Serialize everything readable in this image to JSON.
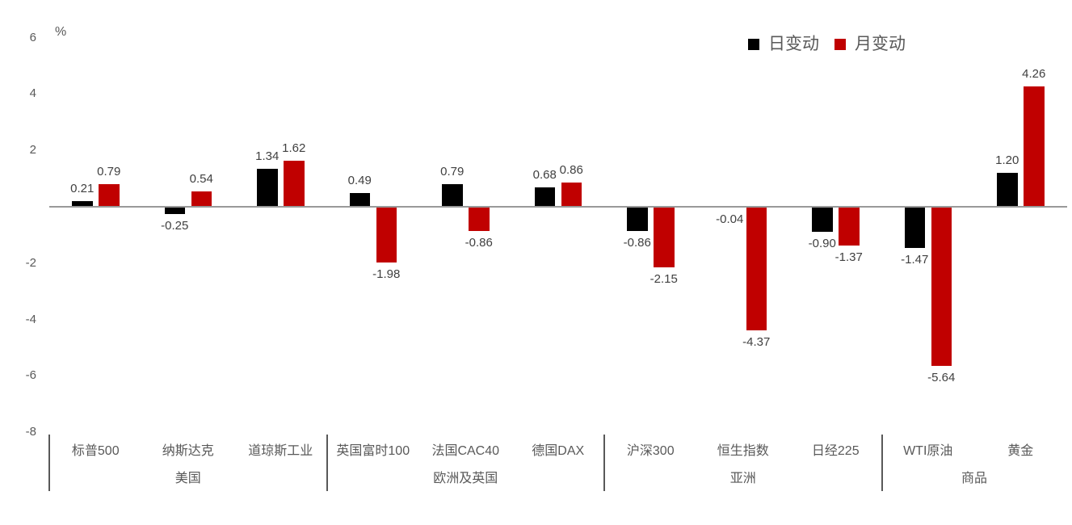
{
  "chart_data": {
    "type": "bar",
    "title": "",
    "axis_unit_label": "%",
    "categories": [
      "标普500",
      "纳斯达克",
      "道琼斯工业",
      "英国富时100",
      "法国CAC40",
      "德国DAX",
      "沪深300",
      "恒生指数",
      "日经225",
      "WTI原油",
      "黄金"
    ],
    "series": [
      {
        "name": "日变动",
        "key": "day-change",
        "color": "#000000",
        "values": [
          0.21,
          -0.25,
          1.34,
          0.49,
          0.79,
          0.68,
          -0.86,
          -0.04,
          -0.9,
          -1.47,
          1.2
        ]
      },
      {
        "name": "月变动",
        "key": "month-change",
        "color": "#C00000",
        "values": [
          0.79,
          0.54,
          1.62,
          -1.98,
          -0.86,
          0.86,
          -2.15,
          -4.37,
          -1.37,
          -5.64,
          4.26
        ]
      }
    ],
    "groups": [
      {
        "label": "美国",
        "span": 3
      },
      {
        "label": "欧洲及英国",
        "span": 3
      },
      {
        "label": "亚洲",
        "span": 3
      },
      {
        "label": "商品",
        "span": 2
      }
    ],
    "y_ticks": [
      6,
      4,
      2,
      -2,
      -4,
      -6,
      -8
    ],
    "ylim": [
      -8,
      6
    ],
    "value_decimals": 2,
    "grid": false,
    "legend_position": "top-right",
    "colors": {
      "axis_line": "#999999",
      "separator": "#595959",
      "tick_text": "#595959",
      "value_text": "#404040",
      "background": "#ffffff"
    }
  }
}
